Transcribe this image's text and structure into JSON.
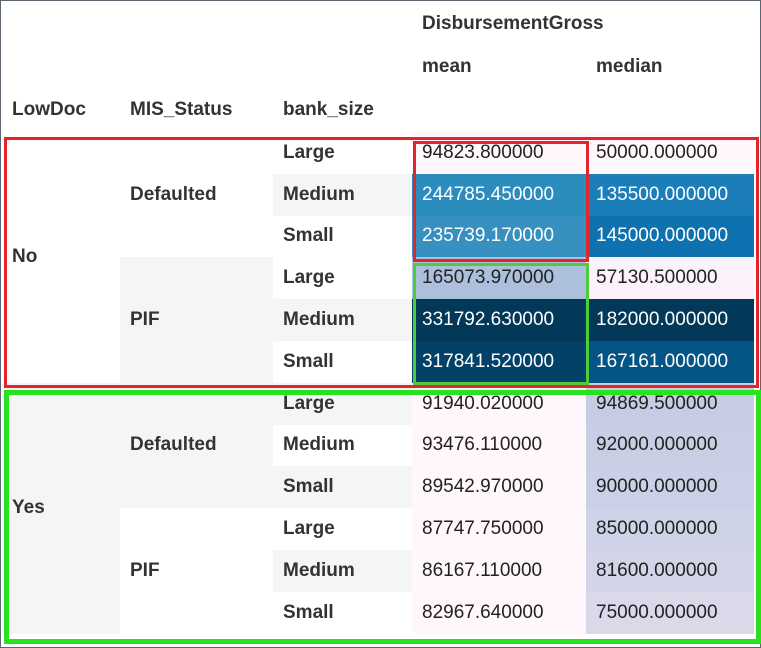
{
  "header": {
    "group": "DisbursementGross",
    "col_mean": "mean",
    "col_median": "median",
    "idx_lowdoc": "LowDoc",
    "idx_mis": "MIS_Status",
    "idx_bank": "bank_size"
  },
  "rows": [
    {
      "lowdoc": "No",
      "mis": "Defaulted",
      "bank": "Large",
      "mean": "94823.800000",
      "median": "50000.000000",
      "mean_bg": "#fff7fb",
      "median_bg": "#fff7fb"
    },
    {
      "lowdoc": "",
      "mis": "",
      "bank": "Medium",
      "mean": "244785.450000",
      "median": "135500.000000",
      "mean_bg": "#2b8cbe",
      "median_bg": "#1b7eb8"
    },
    {
      "lowdoc": "",
      "mis": "",
      "bank": "Small",
      "mean": "235739.170000",
      "median": "145000.000000",
      "mean_bg": "#3790c0",
      "median_bg": "#0f72b0"
    },
    {
      "lowdoc": "",
      "mis": "PIF",
      "bank": "Large",
      "mean": "165073.970000",
      "median": "57130.500000",
      "mean_bg": "#acbfdc",
      "median_bg": "#fbf3f9"
    },
    {
      "lowdoc": "",
      "mis": "",
      "bank": "Medium",
      "mean": "331792.630000",
      "median": "182000.000000",
      "mean_bg": "#023858",
      "median_bg": "#023858"
    },
    {
      "lowdoc": "",
      "mis": "",
      "bank": "Small",
      "mean": "317841.520000",
      "median": "167161.000000",
      "mean_bg": "#034168",
      "median_bg": "#045585"
    },
    {
      "lowdoc": "Yes",
      "mis": "Defaulted",
      "bank": "Large",
      "mean": "91940.020000",
      "median": "94869.500000",
      "mean_bg": "#fff7fb",
      "median_bg": "#c5cce3"
    },
    {
      "lowdoc": "",
      "mis": "",
      "bank": "Medium",
      "mean": "93476.110000",
      "median": "92000.000000",
      "mean_bg": "#fff7fb",
      "median_bg": "#c8cee4"
    },
    {
      "lowdoc": "",
      "mis": "",
      "bank": "Small",
      "mean": "89542.970000",
      "median": "90000.000000",
      "mean_bg": "#fff7fb",
      "median_bg": "#cad0e6"
    },
    {
      "lowdoc": "",
      "mis": "PIF",
      "bank": "Large",
      "mean": "87747.750000",
      "median": "85000.000000",
      "mean_bg": "#fff7fb",
      "median_bg": "#cfd3e7"
    },
    {
      "lowdoc": "",
      "mis": "",
      "bank": "Medium",
      "mean": "86167.110000",
      "median": "81600.000000",
      "mean_bg": "#fff7fb",
      "median_bg": "#d3d4e7"
    },
    {
      "lowdoc": "",
      "mis": "",
      "bank": "Small",
      "mean": "82967.640000",
      "median": "75000.000000",
      "mean_bg": "#fff7fb",
      "median_bg": "#dad9ea"
    }
  ],
  "colors": {
    "highlight_red": "#e3242b",
    "highlight_green": "#29e21f",
    "text_dark": "#222222",
    "text_light": "#ffffff"
  }
}
